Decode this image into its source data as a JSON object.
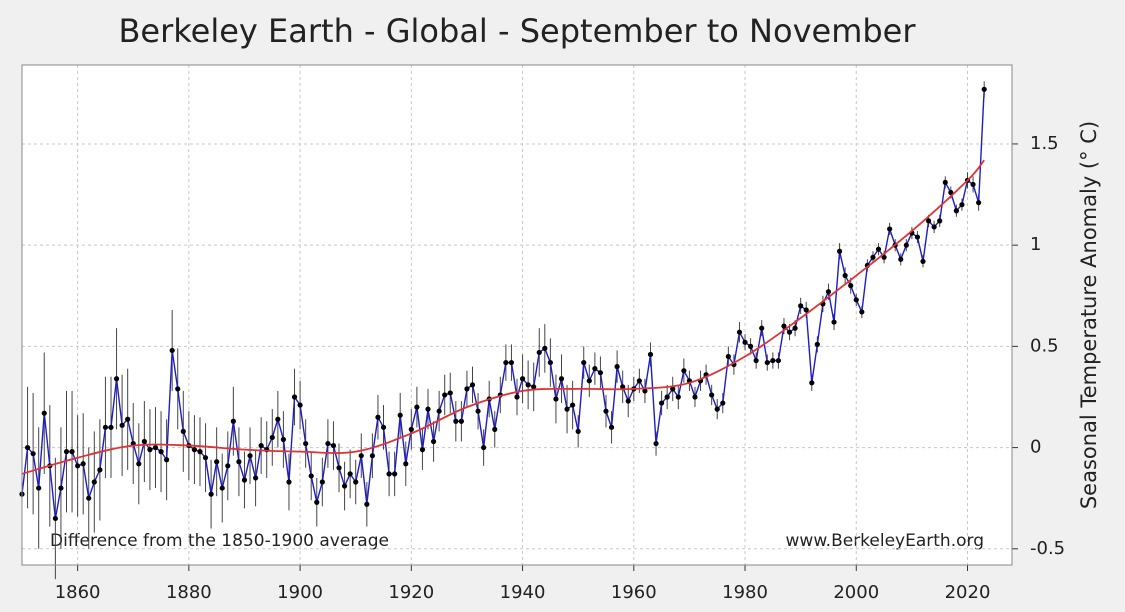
{
  "chart_data": {
    "type": "line",
    "title": "Berkeley Earth - Global - September to November",
    "y_label": "Seasonal Temperature Anomaly (° C)",
    "annotations": [
      "Difference from the 1850-1900 average",
      "www.BerkeleyEarth.org"
    ],
    "xlim": [
      1850,
      2028
    ],
    "ylim": [
      -0.58,
      1.89
    ],
    "xticks": [
      1860,
      1880,
      1900,
      1920,
      1940,
      1960,
      1980,
      2000,
      2020
    ],
    "yticks": [
      -0.5,
      0,
      0.5,
      1,
      1.5
    ],
    "grid": true,
    "series": [
      {
        "color": "#1c1cc8",
        "marker_color": "#000000",
        "error_color": "#444444",
        "x": [
          1850,
          1851,
          1852,
          1853,
          1854,
          1855,
          1856,
          1857,
          1858,
          1859,
          1860,
          1861,
          1862,
          1863,
          1864,
          1865,
          1866,
          1867,
          1868,
          1869,
          1870,
          1871,
          1872,
          1873,
          1874,
          1875,
          1876,
          1877,
          1878,
          1879,
          1880,
          1881,
          1882,
          1883,
          1884,
          1885,
          1886,
          1887,
          1888,
          1889,
          1890,
          1891,
          1892,
          1893,
          1894,
          1895,
          1896,
          1897,
          1898,
          1899,
          1900,
          1901,
          1902,
          1903,
          1904,
          1905,
          1906,
          1907,
          1908,
          1909,
          1910,
          1911,
          1912,
          1913,
          1914,
          1915,
          1916,
          1917,
          1918,
          1919,
          1920,
          1921,
          1922,
          1923,
          1924,
          1925,
          1926,
          1927,
          1928,
          1929,
          1930,
          1931,
          1932,
          1933,
          1934,
          1935,
          1936,
          1937,
          1938,
          1939,
          1940,
          1941,
          1942,
          1943,
          1944,
          1945,
          1946,
          1947,
          1948,
          1949,
          1950,
          1951,
          1952,
          1953,
          1954,
          1955,
          1956,
          1957,
          1958,
          1959,
          1960,
          1961,
          1962,
          1963,
          1964,
          1965,
          1966,
          1967,
          1968,
          1969,
          1970,
          1971,
          1972,
          1973,
          1974,
          1975,
          1976,
          1977,
          1978,
          1979,
          1980,
          1981,
          1982,
          1983,
          1984,
          1985,
          1986,
          1987,
          1988,
          1989,
          1990,
          1991,
          1992,
          1993,
          1994,
          1995,
          1996,
          1997,
          1998,
          1999,
          2000,
          2001,
          2002,
          2003,
          2004,
          2005,
          2006,
          2007,
          2008,
          2009,
          2010,
          2011,
          2012,
          2013,
          2014,
          2015,
          2016,
          2017,
          2018,
          2019,
          2020,
          2021,
          2022,
          2023
        ],
        "values": [
          -0.23,
          0.0,
          -0.03,
          -0.2,
          0.17,
          -0.09,
          -0.35,
          -0.2,
          -0.02,
          -0.02,
          -0.09,
          -0.08,
          -0.25,
          -0.17,
          -0.11,
          0.1,
          0.1,
          0.34,
          0.11,
          0.14,
          0.02,
          -0.08,
          0.03,
          -0.01,
          0.0,
          -0.02,
          -0.06,
          0.48,
          0.29,
          0.08,
          0.01,
          -0.01,
          -0.02,
          -0.05,
          -0.23,
          -0.07,
          -0.2,
          -0.09,
          0.13,
          -0.07,
          -0.16,
          -0.04,
          -0.15,
          0.01,
          -0.01,
          0.05,
          0.14,
          0.04,
          -0.17,
          0.25,
          0.21,
          0.02,
          -0.14,
          -0.27,
          -0.17,
          0.02,
          0.01,
          -0.1,
          -0.19,
          -0.13,
          -0.17,
          -0.04,
          -0.28,
          -0.04,
          0.15,
          0.1,
          -0.13,
          -0.13,
          0.16,
          -0.08,
          0.09,
          0.2,
          -0.01,
          0.19,
          0.03,
          0.18,
          0.26,
          0.27,
          0.13,
          0.13,
          0.29,
          0.31,
          0.18,
          0.0,
          0.24,
          0.09,
          0.26,
          0.42,
          0.42,
          0.25,
          0.34,
          0.31,
          0.3,
          0.47,
          0.49,
          0.42,
          0.24,
          0.34,
          0.19,
          0.21,
          0.08,
          0.42,
          0.33,
          0.39,
          0.37,
          0.18,
          0.1,
          0.4,
          0.3,
          0.23,
          0.29,
          0.33,
          0.28,
          0.46,
          0.02,
          0.22,
          0.25,
          0.29,
          0.25,
          0.38,
          0.33,
          0.25,
          0.33,
          0.36,
          0.26,
          0.19,
          0.22,
          0.45,
          0.41,
          0.57,
          0.52,
          0.5,
          0.43,
          0.59,
          0.42,
          0.43,
          0.43,
          0.6,
          0.57,
          0.59,
          0.7,
          0.68,
          0.32,
          0.51,
          0.71,
          0.77,
          0.62,
          0.97,
          0.85,
          0.8,
          0.73,
          0.67,
          0.9,
          0.94,
          0.98,
          0.94,
          1.08,
          1.0,
          0.93,
          1.0,
          1.06,
          1.04,
          0.92,
          1.12,
          1.09,
          1.12,
          1.31,
          1.26,
          1.17,
          1.2,
          1.32,
          1.3,
          1.21,
          1.77
        ],
        "errors": [
          0.3,
          0.3,
          0.3,
          0.3,
          0.3,
          0.3,
          0.3,
          0.3,
          0.3,
          0.3,
          0.25,
          0.25,
          0.25,
          0.25,
          0.25,
          0.25,
          0.25,
          0.25,
          0.25,
          0.25,
          0.2,
          0.2,
          0.2,
          0.2,
          0.2,
          0.2,
          0.2,
          0.2,
          0.2,
          0.2,
          0.17,
          0.17,
          0.17,
          0.17,
          0.17,
          0.17,
          0.17,
          0.17,
          0.17,
          0.17,
          0.14,
          0.14,
          0.14,
          0.14,
          0.14,
          0.14,
          0.14,
          0.14,
          0.14,
          0.14,
          0.12,
          0.12,
          0.12,
          0.12,
          0.12,
          0.12,
          0.12,
          0.12,
          0.12,
          0.12,
          0.11,
          0.11,
          0.11,
          0.11,
          0.11,
          0.11,
          0.11,
          0.11,
          0.11,
          0.11,
          0.1,
          0.1,
          0.1,
          0.1,
          0.1,
          0.1,
          0.1,
          0.1,
          0.1,
          0.1,
          0.09,
          0.09,
          0.09,
          0.09,
          0.09,
          0.09,
          0.09,
          0.09,
          0.09,
          0.09,
          0.12,
          0.12,
          0.12,
          0.12,
          0.12,
          0.12,
          0.12,
          0.12,
          0.12,
          0.12,
          0.08,
          0.08,
          0.08,
          0.08,
          0.08,
          0.08,
          0.08,
          0.08,
          0.08,
          0.08,
          0.06,
          0.06,
          0.06,
          0.06,
          0.06,
          0.06,
          0.06,
          0.06,
          0.06,
          0.06,
          0.05,
          0.05,
          0.05,
          0.05,
          0.05,
          0.05,
          0.05,
          0.05,
          0.05,
          0.05,
          0.04,
          0.04,
          0.04,
          0.04,
          0.04,
          0.04,
          0.04,
          0.04,
          0.04,
          0.04,
          0.04,
          0.04,
          0.04,
          0.04,
          0.04,
          0.04,
          0.04,
          0.04,
          0.04,
          0.04,
          0.03,
          0.03,
          0.03,
          0.03,
          0.03,
          0.03,
          0.03,
          0.03,
          0.03,
          0.03,
          0.03,
          0.03,
          0.03,
          0.03,
          0.03,
          0.03,
          0.03,
          0.03,
          0.03,
          0.03,
          0.04,
          0.04,
          0.04,
          0.04
        ]
      },
      {
        "color": "#e03232",
        "smooth": true,
        "x": [
          1850,
          1860,
          1870,
          1880,
          1890,
          1900,
          1910,
          1920,
          1930,
          1940,
          1950,
          1960,
          1970,
          1980,
          1990,
          2000,
          2010,
          2020,
          2023
        ],
        "values": [
          -0.13,
          -0.05,
          0.01,
          0.01,
          -0.01,
          -0.02,
          -0.02,
          0.07,
          0.2,
          0.28,
          0.29,
          0.29,
          0.32,
          0.45,
          0.64,
          0.85,
          1.07,
          1.32,
          1.42
        ]
      }
    ]
  }
}
